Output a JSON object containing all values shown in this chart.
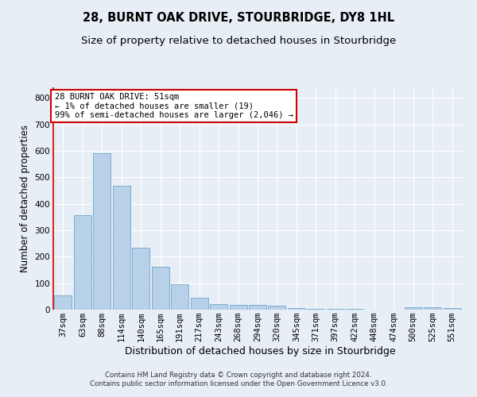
{
  "title": "28, BURNT OAK DRIVE, STOURBRIDGE, DY8 1HL",
  "subtitle": "Size of property relative to detached houses in Stourbridge",
  "xlabel": "Distribution of detached houses by size in Stourbridge",
  "ylabel": "Number of detached properties",
  "bar_color": "#b8d0e8",
  "bar_edge_color": "#7aafd4",
  "annotation_box_text": "28 BURNT OAK DRIVE: 51sqm\n← 1% of detached houses are smaller (19)\n99% of semi-detached houses are larger (2,046) →",
  "annotation_box_color": "#ffffff",
  "annotation_box_edge_color": "#cc0000",
  "vline_color": "#cc0000",
  "footer_line1": "Contains HM Land Registry data © Crown copyright and database right 2024.",
  "footer_line2": "Contains public sector information licensed under the Open Government Licence v3.0.",
  "categories": [
    "37sqm",
    "63sqm",
    "88sqm",
    "114sqm",
    "140sqm",
    "165sqm",
    "191sqm",
    "217sqm",
    "243sqm",
    "268sqm",
    "294sqm",
    "320sqm",
    "345sqm",
    "371sqm",
    "397sqm",
    "422sqm",
    "448sqm",
    "474sqm",
    "500sqm",
    "525sqm",
    "551sqm"
  ],
  "values": [
    55,
    357,
    590,
    468,
    235,
    163,
    96,
    45,
    20,
    19,
    19,
    14,
    7,
    4,
    2,
    2,
    1,
    0,
    9,
    9,
    6
  ],
  "ylim": [
    0,
    840
  ],
  "yticks": [
    0,
    100,
    200,
    300,
    400,
    500,
    600,
    700,
    800
  ],
  "title_fontsize": 10.5,
  "subtitle_fontsize": 9.5,
  "axis_label_fontsize": 8.5,
  "tick_fontsize": 7.5,
  "annotation_fontsize": 7.5,
  "footer_fontsize": 6.2,
  "bg_color": "#e8eef5",
  "plot_bg_color": "#e8eef5",
  "grid_color": "#ffffff"
}
